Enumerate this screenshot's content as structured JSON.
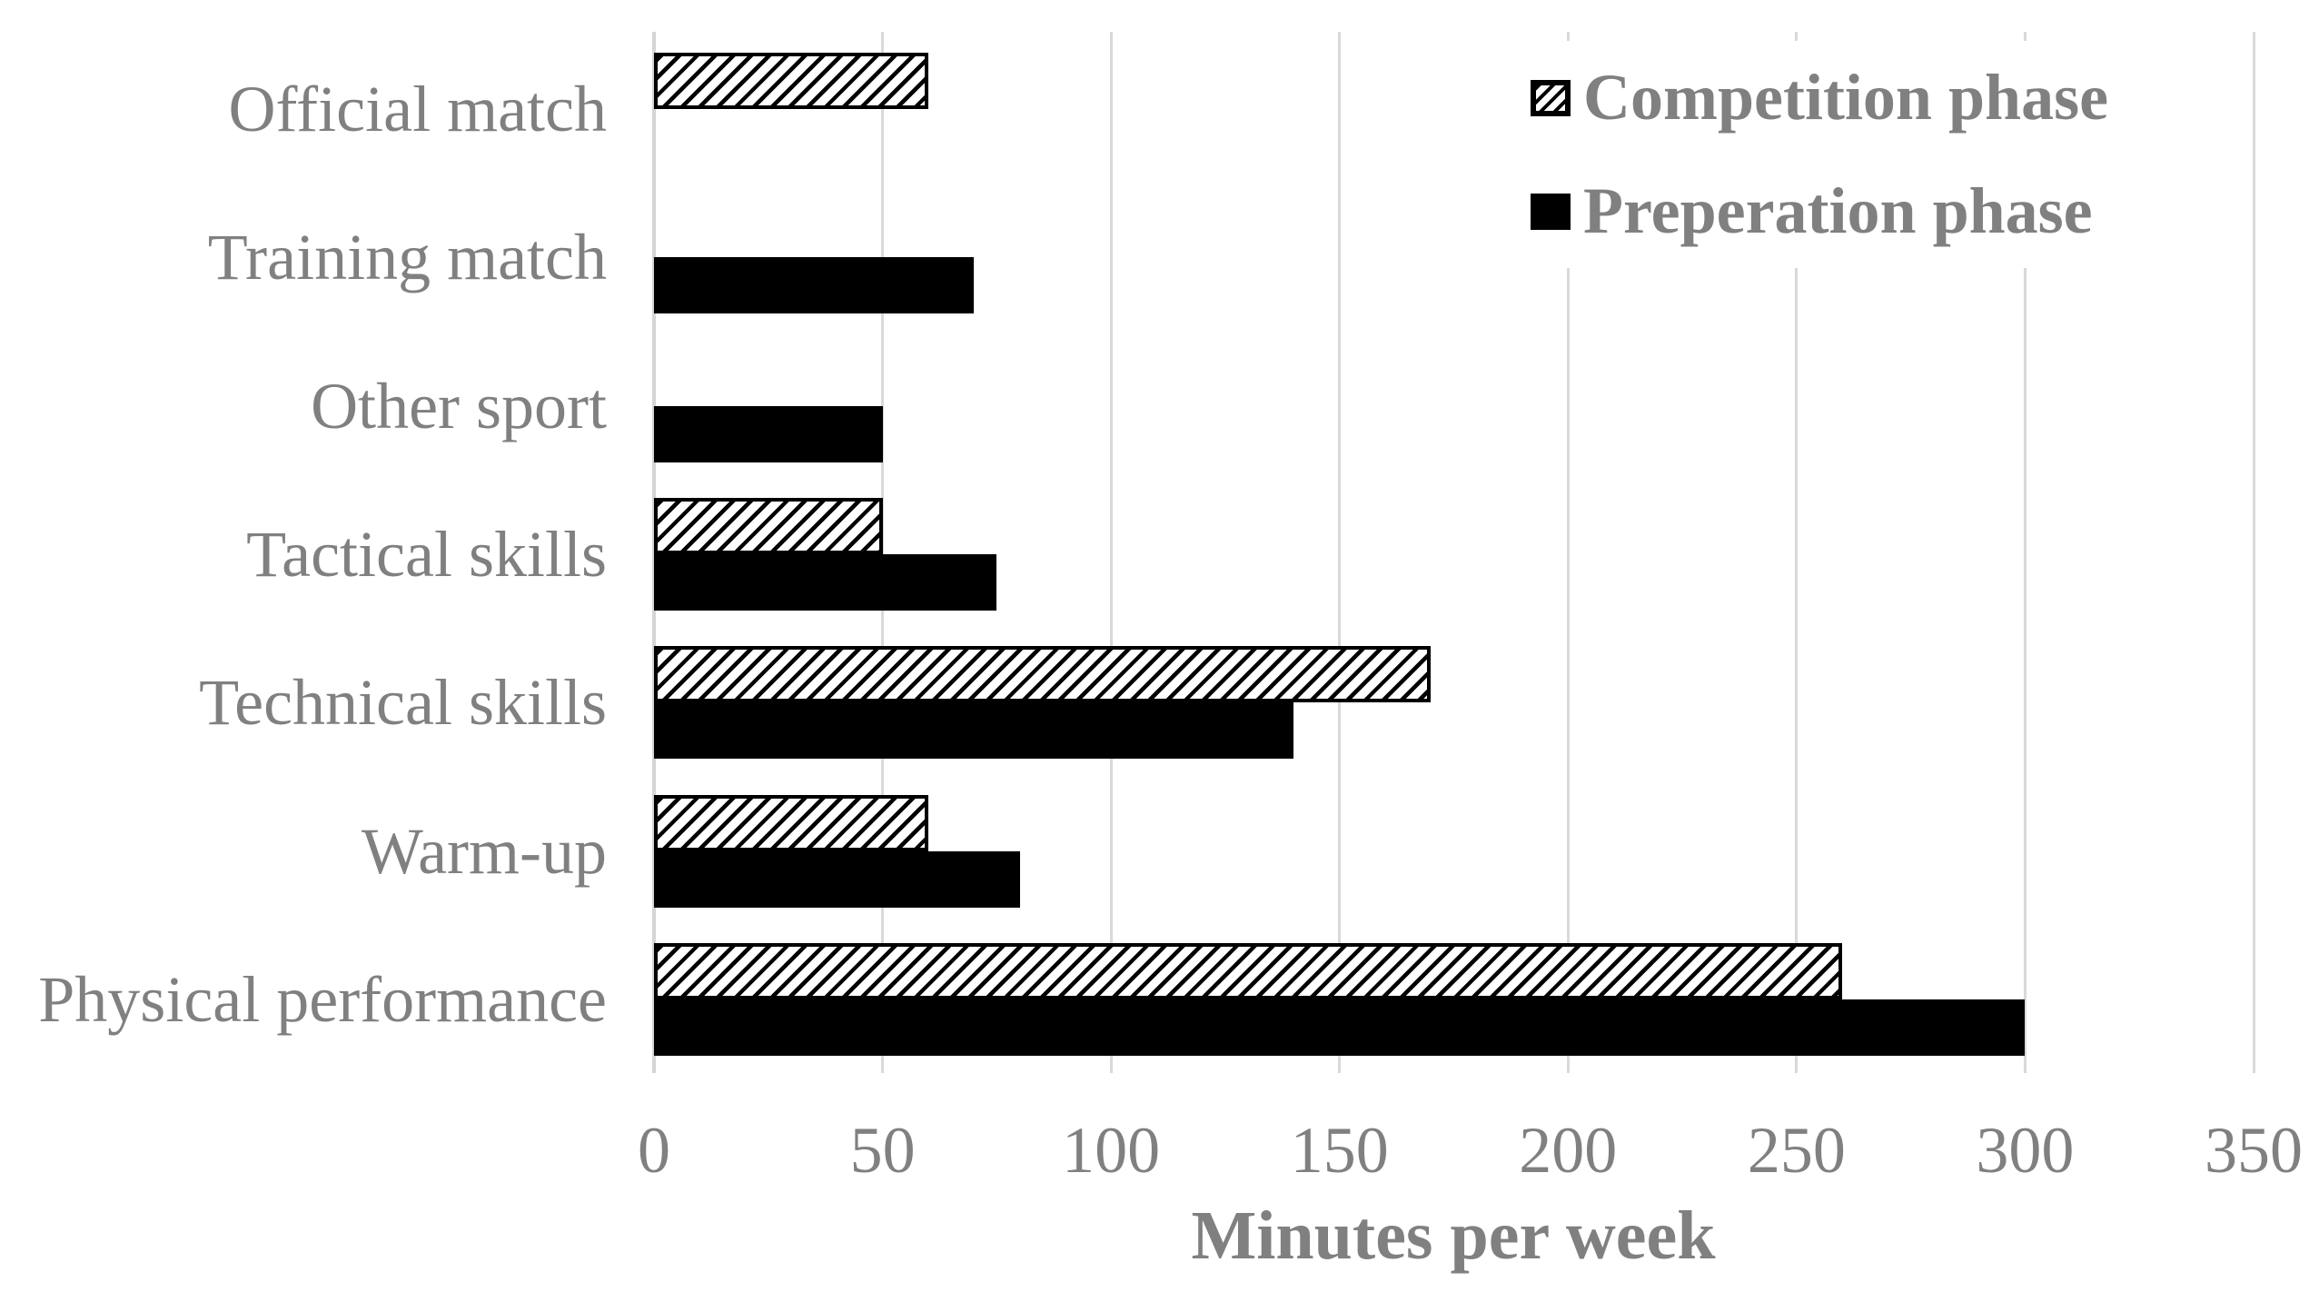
{
  "chart_data": {
    "type": "bar",
    "orientation": "horizontal",
    "title": "",
    "categories": [
      "Official match",
      "Training match",
      "Other sport",
      "Tactical skills",
      "Technical skills",
      "Warm-up",
      "Physical performance"
    ],
    "series": [
      {
        "name": "Competition phase",
        "fill": "hatched-diagonal",
        "values": [
          60,
          0,
          0,
          50,
          170,
          60,
          260
        ]
      },
      {
        "name": "Preperation phase",
        "fill": "solid-black",
        "values": [
          0,
          70,
          50,
          75,
          140,
          80,
          300
        ]
      }
    ],
    "xlabel": "Minutes per week",
    "ylabel": "",
    "xlim": [
      0,
      350
    ],
    "xticks": [
      "0",
      "50",
      "100",
      "150",
      "200",
      "250",
      "300",
      "350"
    ],
    "grid": "vertical-on",
    "legend_position": "top-right",
    "notes": "zero values render as no bar"
  },
  "colors": {
    "text_gray": "#808080",
    "gridline": "#d9d9d9",
    "bar_black": "#000000",
    "background": "#ffffff"
  }
}
